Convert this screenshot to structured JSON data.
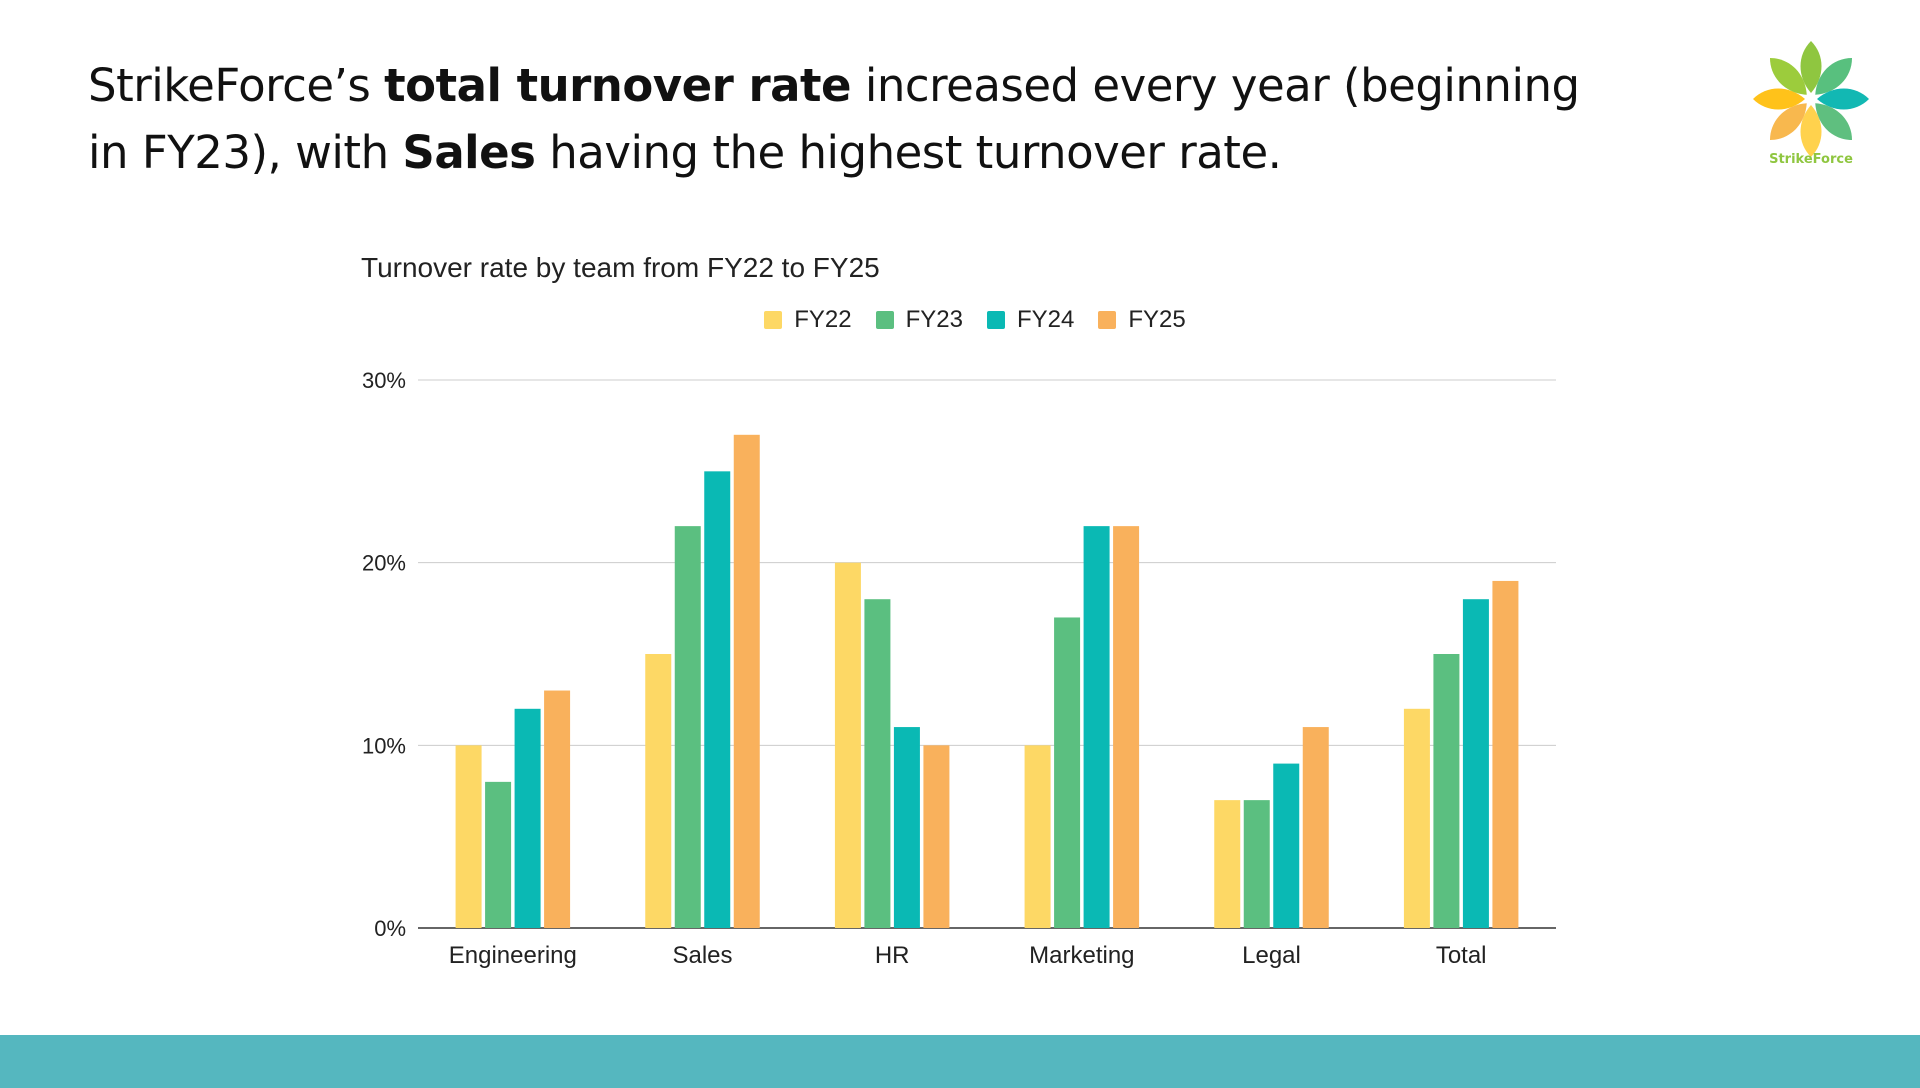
{
  "slide": {
    "title_parts": [
      {
        "text": "StrikeForce’s ",
        "bold": false
      },
      {
        "text": "total turnover rate",
        "bold": true
      },
      {
        "text": " increased every year (beginning in FY23), with ",
        "bold": false
      },
      {
        "text": "Sales",
        "bold": true
      },
      {
        "text": " having the highest turnover rate.",
        "bold": false
      }
    ]
  },
  "logo": {
    "name": "StrikeForce",
    "icon": "pinwheel-flower-icon",
    "petal_colors": [
      "#8fc640",
      "#58c07e",
      "#12b8b3",
      "#5fbf7f",
      "#ffd24d",
      "#f8b84e",
      "#ffc21a",
      "#9ccc3c"
    ]
  },
  "chart_data": {
    "type": "bar",
    "title": "Turnover rate by team from FY22 to FY25",
    "categories": [
      "Engineering",
      "Sales",
      "HR",
      "Marketing",
      "Legal",
      "Total"
    ],
    "series": [
      {
        "name": "FY22",
        "color": "#fdd865",
        "values": [
          10,
          15,
          20,
          10,
          7,
          12
        ]
      },
      {
        "name": "FY23",
        "color": "#5bbf80",
        "values": [
          8,
          22,
          18,
          17,
          7,
          15
        ]
      },
      {
        "name": "FY24",
        "color": "#0ab9b4",
        "values": [
          12,
          25,
          11,
          22,
          9,
          18
        ]
      },
      {
        "name": "FY25",
        "color": "#f9b15c",
        "values": [
          13,
          27,
          10,
          22,
          11,
          19
        ]
      }
    ],
    "yticks": [
      "0%",
      "10%",
      "20%",
      "30%"
    ],
    "ylim": [
      0,
      30
    ],
    "unit": "%",
    "grid": true,
    "legend_position": "top-center"
  },
  "footer": {
    "color": "#55b7bf"
  }
}
